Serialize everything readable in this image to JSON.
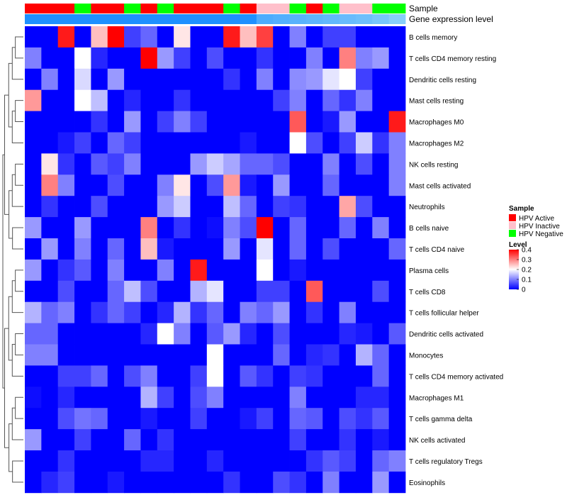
{
  "chart_data": {
    "type": "heatmap",
    "annotation_tracks": [
      "Sample",
      "Gene expression level"
    ],
    "sample_groups": [
      "HPV Active",
      "HPV Active",
      "HPV Active",
      "HPV Negative",
      "HPV Active",
      "HPV Active",
      "HPV Negative",
      "HPV Active",
      "HPV Negative",
      "HPV Active",
      "HPV Active",
      "HPV Active",
      "HPV Negative",
      "HPV Active",
      "HPV Inactive",
      "HPV Inactive",
      "HPV Negative",
      "HPV Active",
      "HPV Negative",
      "HPV Inactive",
      "HPV Inactive",
      "HPV Negative",
      "HPV Negative"
    ],
    "expression_shade": [
      0,
      0,
      0,
      0,
      0,
      0,
      0,
      0,
      0,
      0,
      0,
      0,
      0,
      0,
      0.45,
      0.5,
      0.55,
      0.6,
      0.65,
      0.7,
      0.75,
      0.85,
      1
    ],
    "rows": [
      {
        "label": "B cells memory",
        "values": [
          0,
          0,
          0.38,
          0,
          0.25,
          0.4,
          0.05,
          0.08,
          0,
          0.22,
          0,
          0,
          0.38,
          0.25,
          0.35,
          0,
          0.1,
          0,
          0.05,
          0.05,
          0,
          0,
          0
        ]
      },
      {
        "label": "T cells CD4 memory resting",
        "values": [
          0.1,
          0,
          0,
          0.2,
          0.03,
          0,
          0,
          0.4,
          0.12,
          0.05,
          0,
          0.06,
          0,
          0,
          0.04,
          0,
          0,
          0.1,
          0,
          0.3,
          0.1,
          0.12,
          0
        ]
      },
      {
        "label": "Dendritic cells resting",
        "values": [
          0,
          0.1,
          0,
          0.17,
          0,
          0.12,
          0,
          0,
          0,
          0,
          0,
          0,
          0.04,
          0,
          0.1,
          0,
          0.11,
          0.12,
          0.18,
          0.2,
          0.05,
          0,
          0
        ]
      },
      {
        "label": "Mast cells resting",
        "values": [
          0.28,
          0,
          0,
          0.2,
          0.15,
          0,
          0.03,
          0,
          0,
          0.04,
          0,
          0,
          0,
          0,
          0,
          0.05,
          0.1,
          0,
          0.08,
          0.04,
          0.1,
          0,
          0
        ]
      },
      {
        "label": "Macrophages M0",
        "values": [
          0,
          0,
          0,
          0,
          0.04,
          0,
          0.12,
          0,
          0.05,
          0.1,
          0.05,
          0,
          0,
          0,
          0,
          0,
          0.33,
          0,
          0.02,
          0.12,
          0,
          0,
          0.38
        ]
      },
      {
        "label": "Macrophages M2",
        "values": [
          0,
          0,
          0.02,
          0.05,
          0,
          0.08,
          0.05,
          0,
          0,
          0,
          0,
          0,
          0,
          0.02,
          0,
          0,
          0.2,
          0.06,
          0,
          0.05,
          0.16,
          0.04,
          0.1
        ]
      },
      {
        "label": "NK cells resting",
        "values": [
          0,
          0.22,
          0.04,
          0,
          0.07,
          0.05,
          0.1,
          0,
          0,
          0,
          0.12,
          0.16,
          0.13,
          0.08,
          0.08,
          0.06,
          0,
          0,
          0.1,
          0,
          0.06,
          0,
          0.1
        ]
      },
      {
        "label": "Mast cells activated",
        "values": [
          0,
          0.3,
          0.1,
          0,
          0,
          0.06,
          0,
          0,
          0.1,
          0.22,
          0,
          0.06,
          0.28,
          0.02,
          0,
          0.12,
          0,
          0,
          0.08,
          0,
          0,
          0,
          0.1
        ]
      },
      {
        "label": "Neutrophils",
        "values": [
          0,
          0.04,
          0,
          0,
          0.06,
          0,
          0,
          0,
          0.12,
          0.16,
          0,
          0,
          0.15,
          0.08,
          0,
          0.05,
          0.04,
          0,
          0,
          0.27,
          0.06,
          0,
          0
        ]
      },
      {
        "label": "B cells naive",
        "values": [
          0.12,
          0,
          0,
          0.12,
          0,
          0,
          0,
          0.3,
          0,
          0.04,
          0,
          0.01,
          0.1,
          0.06,
          0.4,
          0,
          0.08,
          0,
          0,
          0.08,
          0,
          0.1,
          0
        ]
      },
      {
        "label": "T cells CD4 naive",
        "values": [
          0,
          0.12,
          0,
          0.1,
          0,
          0.08,
          0,
          0.25,
          0.02,
          0,
          0,
          0,
          0.12,
          0,
          0.18,
          0,
          0.08,
          0,
          0.06,
          0,
          0,
          0,
          0.08
        ]
      },
      {
        "label": "Plasma cells",
        "values": [
          0.12,
          0,
          0.04,
          0.07,
          0,
          0.1,
          0,
          0,
          0.1,
          0,
          0.38,
          0,
          0,
          0,
          0.2,
          0,
          0.02,
          0,
          0,
          0,
          0,
          0,
          0
        ]
      },
      {
        "label": "T cells CD8",
        "values": [
          0,
          0,
          0.06,
          0,
          0,
          0.08,
          0.15,
          0.06,
          0,
          0,
          0.14,
          0.18,
          0,
          0,
          0.05,
          0.05,
          0,
          0.33,
          0,
          0,
          0,
          0.06,
          0
        ]
      },
      {
        "label": "T cells follicular helper",
        "values": [
          0.14,
          0.08,
          0.1,
          0,
          0.04,
          0.08,
          0.05,
          0,
          0.03,
          0.14,
          0.04,
          0.08,
          0,
          0.1,
          0.08,
          0.12,
          0,
          0.04,
          0,
          0.1,
          0,
          0,
          0
        ]
      },
      {
        "label": "Dendritic cells activated",
        "values": [
          0.08,
          0.08,
          0,
          0,
          0,
          0,
          0,
          0.03,
          0.2,
          0.1,
          0,
          0.07,
          0.12,
          0.03,
          0,
          0.06,
          0,
          0,
          0,
          0.03,
          0.02,
          0,
          0.07
        ]
      },
      {
        "label": "Monocytes",
        "values": [
          0.1,
          0.1,
          0,
          0,
          0,
          0,
          0,
          0,
          0,
          0,
          0,
          0.2,
          0,
          0,
          0,
          0.08,
          0,
          0.03,
          0.04,
          0,
          0.14,
          0.08,
          0
        ]
      },
      {
        "label": "T cells CD4 memory activated",
        "values": [
          0,
          0,
          0.05,
          0.05,
          0.08,
          0,
          0.06,
          0.1,
          0,
          0,
          0.05,
          0.2,
          0,
          0.07,
          0.04,
          0,
          0.05,
          0.04,
          0,
          0,
          0,
          0.08,
          0
        ]
      },
      {
        "label": "Macrophages M1",
        "values": [
          0.01,
          0,
          0.03,
          0,
          0,
          0,
          0,
          0.14,
          0.05,
          0,
          0.06,
          0.1,
          0,
          0,
          0,
          0,
          0.1,
          0,
          0,
          0,
          0.03,
          0.03,
          0
        ]
      },
      {
        "label": "T cells gamma delta",
        "values": [
          0,
          0,
          0.06,
          0.09,
          0.08,
          0,
          0,
          0.02,
          0,
          0,
          0.05,
          0,
          0,
          0.02,
          0.05,
          0,
          0.08,
          0.07,
          0,
          0.06,
          0.04,
          0.07,
          0
        ]
      },
      {
        "label": "NK cells activated",
        "values": [
          0.12,
          0,
          0,
          0.05,
          0,
          0,
          0.08,
          0,
          0.04,
          0,
          0,
          0,
          0,
          0,
          0,
          0,
          0.05,
          0,
          0,
          0.04,
          0,
          0.02,
          0
        ]
      },
      {
        "label": "T cells regulatory  Tregs",
        "values": [
          0,
          0,
          0.04,
          0,
          0,
          0,
          0,
          0.03,
          0.03,
          0,
          0,
          0.03,
          0,
          0,
          0,
          0,
          0,
          0.04,
          0.07,
          0.05,
          0,
          0.08,
          0.1
        ]
      },
      {
        "label": "Eosinophils",
        "values": [
          0,
          0.03,
          0.05,
          0,
          0,
          0.02,
          0,
          0,
          0,
          0,
          0,
          0,
          0.04,
          0,
          0,
          0.06,
          0.04,
          0,
          0.1,
          0,
          0,
          0.12,
          0
        ]
      }
    ],
    "legend": {
      "sample": {
        "title": "Sample",
        "entries": [
          {
            "label": "HPV Active",
            "color": "#ff0000"
          },
          {
            "label": "HPV Inactive",
            "color": "#ffc0cb"
          },
          {
            "label": "HPV Negative",
            "color": "#00ff00"
          }
        ]
      },
      "level": {
        "title": "Level",
        "min": 0,
        "max": 0.4,
        "ticks": [
          0.4,
          0.3,
          0.2,
          0.1,
          0
        ],
        "tick_labels": [
          "0.4",
          "0.3",
          "0.2",
          "0.1",
          "0"
        ]
      }
    },
    "colorscale": {
      "low": "#0000ff",
      "mid": "#ffffff",
      "high": "#ff0000",
      "mid_value": 0.2
    },
    "annotation_shade_colors": {
      "start": "#1e90ff",
      "end": "#87cefa"
    }
  }
}
